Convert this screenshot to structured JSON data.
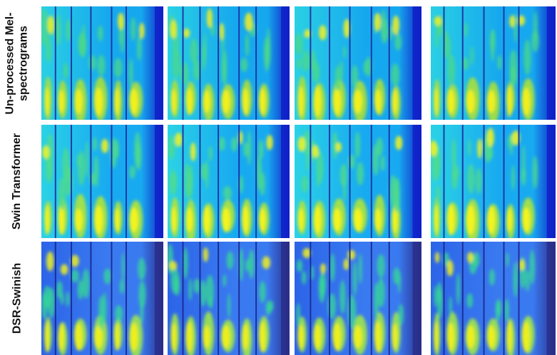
{
  "figure": {
    "rows": [
      {
        "label_lines": [
          "Un-processed Mel-",
          "spectrograms"
        ],
        "tile_count": 4,
        "palette": {
          "base": "#2ad0e4",
          "deep": "#16a8ee",
          "dark_band": "#1a2ea0",
          "edge": "#1020c8",
          "hot": "#f6f01c",
          "warm": "#a8e03c",
          "green": "#4bd88a"
        }
      },
      {
        "label_lines": [
          "Swin Transformer"
        ],
        "tile_count": 4,
        "palette": {
          "base": "#2bd2e6",
          "deep": "#18aaf0",
          "dark_band": "#1a2ea0",
          "edge": "#1020c8",
          "hot": "#f8f41a",
          "warm": "#aee43a",
          "green": "#50dc8a"
        }
      },
      {
        "label_lines": [
          "DSR-Swinish"
        ],
        "tile_count": 4,
        "palette": {
          "base": "#2c64e8",
          "deep": "#3a7af0",
          "dark_band": "#1a2890",
          "edge": "#2a2e8a",
          "hot": "#f0f01c",
          "warm": "#9ee64a",
          "green": "#36d896"
        }
      }
    ]
  }
}
